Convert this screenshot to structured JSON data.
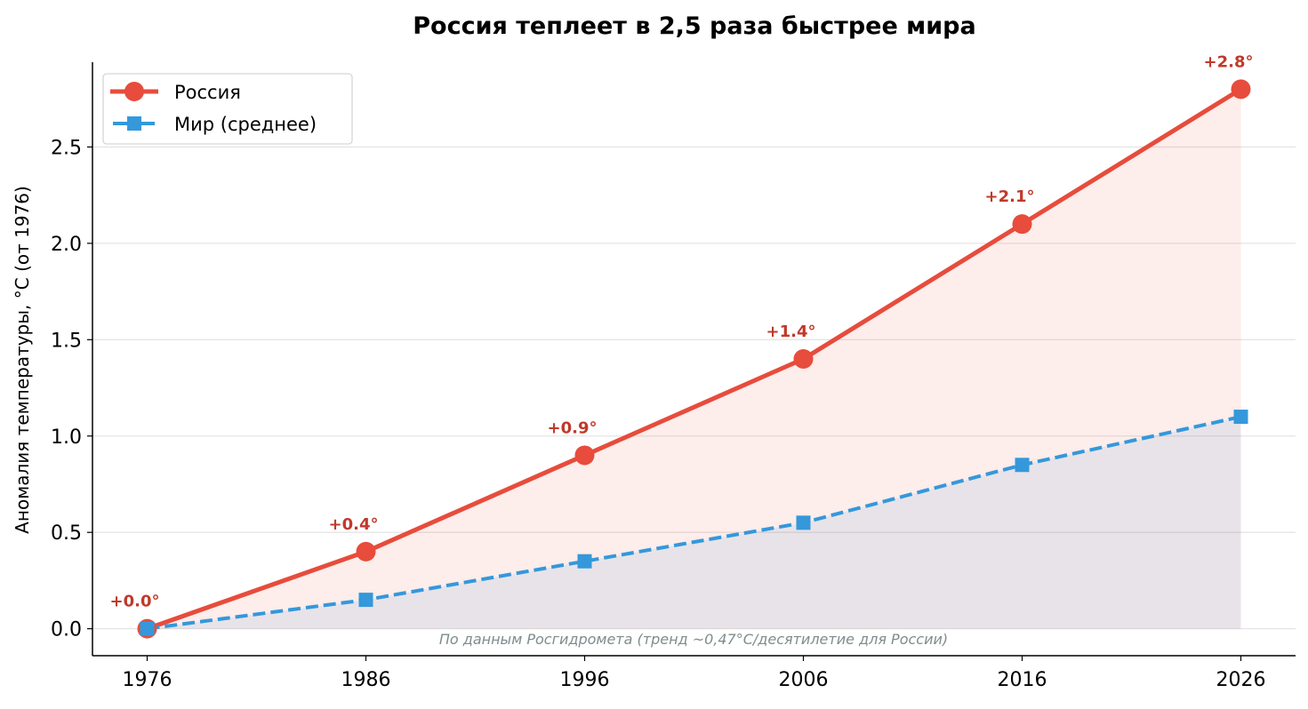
{
  "chart_data": {
    "type": "line",
    "title": "Россия теплеет в 2,5 раза быстрее мира",
    "xlabel": "",
    "ylabel": "Аномалия температуры, °C (от 1976)",
    "x": [
      1976,
      1986,
      1996,
      2006,
      2016,
      2026
    ],
    "xticks": [
      "1976",
      "1986",
      "1996",
      "2006",
      "2016",
      "2026"
    ],
    "yticks": [
      "0.0",
      "0.5",
      "1.0",
      "1.5",
      "2.0",
      "2.5"
    ],
    "ylim": [
      -0.14,
      2.94
    ],
    "xlim": [
      1973.5,
      2028.5
    ],
    "grid": "horizontal",
    "legend_position": "top-left",
    "series": [
      {
        "name": "Россия",
        "values": [
          0.0,
          0.4,
          0.9,
          1.4,
          2.1,
          2.8
        ],
        "color": "#e74c3c",
        "marker": "circle",
        "linestyle": "solid",
        "labels": [
          "+0.0°",
          "+0.4°",
          "+0.9°",
          "+1.4°",
          "+2.1°",
          "+2.8°"
        ],
        "label_color": "#c0392b"
      },
      {
        "name": "Мир (среднее)",
        "values": [
          0.0,
          0.15,
          0.35,
          0.55,
          0.85,
          1.1
        ],
        "color": "#3498db",
        "marker": "square",
        "linestyle": "dashed"
      }
    ],
    "annotation": "По данным Росгидромета (тренд ~0,47°C/десятилетие для России)"
  }
}
